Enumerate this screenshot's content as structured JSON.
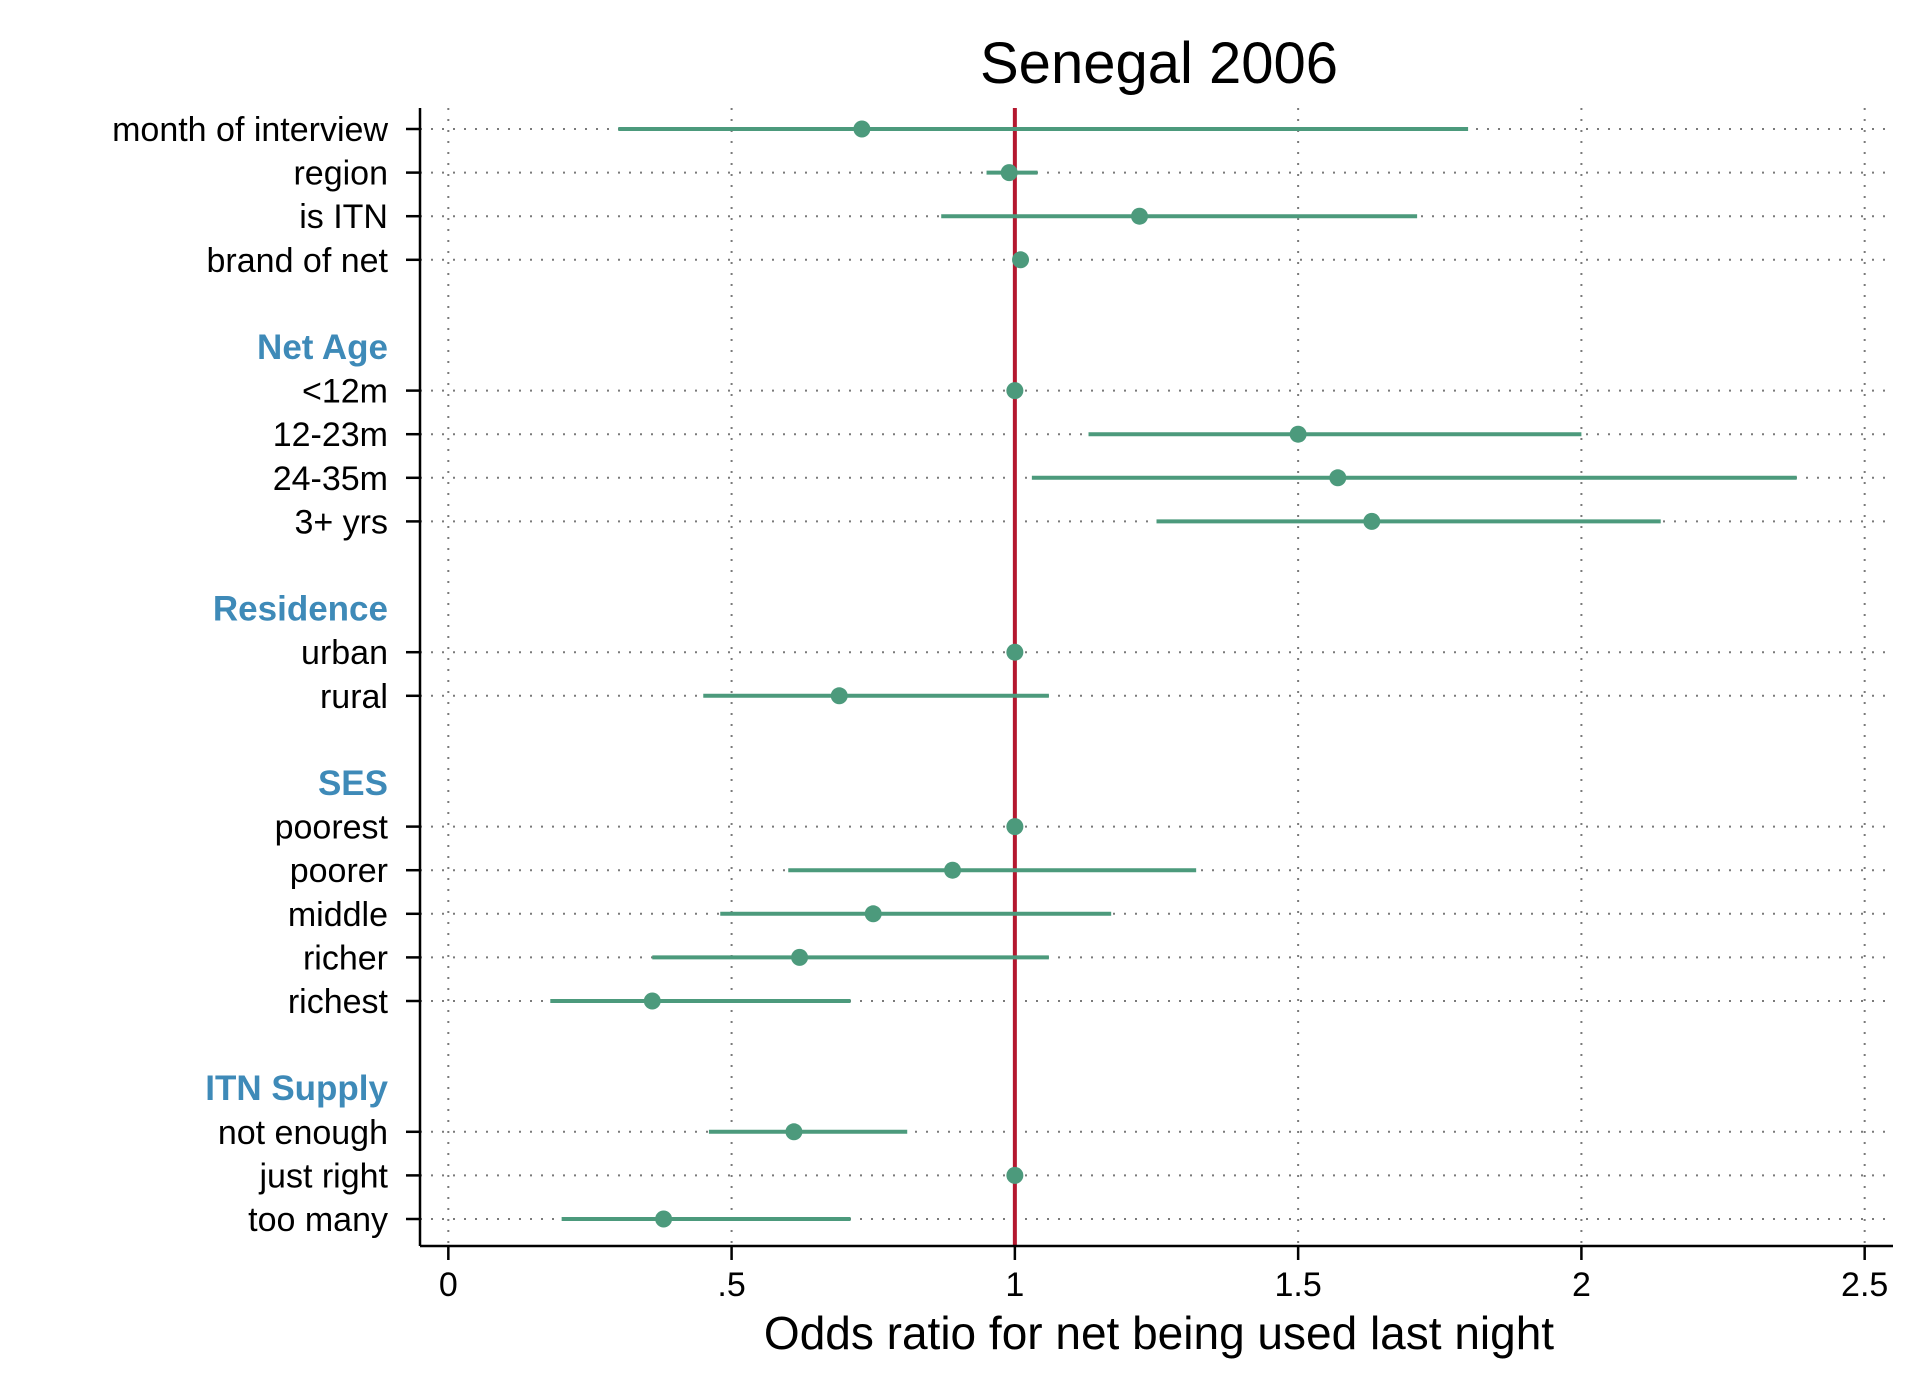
{
  "chart_data": {
    "type": "scatter",
    "title": "Senegal 2006",
    "xlabel": "Odds ratio for net being used last night",
    "ylabel": "",
    "xlim": [
      -0.05,
      2.55
    ],
    "xticks": [
      0,
      0.5,
      1,
      1.5,
      2,
      2.5
    ],
    "xtick_labels": [
      "0",
      ".5",
      "1",
      "1.5",
      "2",
      "2.5"
    ],
    "reference_line": 1,
    "grid": true,
    "rows": [
      {
        "kind": "row",
        "label": "month of interview",
        "estimate": 0.73,
        "ci": [
          0.3,
          1.8
        ]
      },
      {
        "kind": "row",
        "label": "region",
        "estimate": 0.99,
        "ci": [
          0.95,
          1.04
        ]
      },
      {
        "kind": "row",
        "label": "is ITN",
        "estimate": 1.22,
        "ci": [
          0.87,
          1.71
        ]
      },
      {
        "kind": "row",
        "label": "brand of net",
        "estimate": 1.01,
        "ci": [
          1.0,
          1.02
        ]
      },
      {
        "kind": "spacer"
      },
      {
        "kind": "group",
        "label": "Net Age"
      },
      {
        "kind": "row",
        "label": "<12m",
        "estimate": 1.0,
        "ci": [
          1.0,
          1.0
        ]
      },
      {
        "kind": "row",
        "label": "12-23m",
        "estimate": 1.5,
        "ci": [
          1.13,
          2.0
        ]
      },
      {
        "kind": "row",
        "label": "24-35m",
        "estimate": 1.57,
        "ci": [
          1.03,
          2.38
        ]
      },
      {
        "kind": "row",
        "label": "3+ yrs",
        "estimate": 1.63,
        "ci": [
          1.25,
          2.14
        ]
      },
      {
        "kind": "spacer"
      },
      {
        "kind": "group",
        "label": "Residence"
      },
      {
        "kind": "row",
        "label": "urban",
        "estimate": 1.0,
        "ci": [
          1.0,
          1.0
        ]
      },
      {
        "kind": "row",
        "label": "rural",
        "estimate": 0.69,
        "ci": [
          0.45,
          1.06
        ]
      },
      {
        "kind": "spacer"
      },
      {
        "kind": "group",
        "label": "SES"
      },
      {
        "kind": "row",
        "label": "poorest",
        "estimate": 1.0,
        "ci": [
          1.0,
          1.0
        ]
      },
      {
        "kind": "row",
        "label": "poorer",
        "estimate": 0.89,
        "ci": [
          0.6,
          1.32
        ]
      },
      {
        "kind": "row",
        "label": "middle",
        "estimate": 0.75,
        "ci": [
          0.48,
          1.17
        ]
      },
      {
        "kind": "row",
        "label": "richer",
        "estimate": 0.62,
        "ci": [
          0.36,
          1.06
        ]
      },
      {
        "kind": "row",
        "label": "richest",
        "estimate": 0.36,
        "ci": [
          0.18,
          0.71
        ]
      },
      {
        "kind": "spacer"
      },
      {
        "kind": "group",
        "label": "ITN Supply"
      },
      {
        "kind": "row",
        "label": "not enough",
        "estimate": 0.61,
        "ci": [
          0.46,
          0.81
        ]
      },
      {
        "kind": "row",
        "label": "just right",
        "estimate": 1.0,
        "ci": [
          1.0,
          1.0
        ]
      },
      {
        "kind": "row",
        "label": "too many",
        "estimate": 0.38,
        "ci": [
          0.2,
          0.71
        ]
      }
    ]
  },
  "colors": {
    "marker": "#4c9a7c",
    "reference_line": "#b4182f",
    "group_label": "#3e8ab8",
    "grid": "#7a7a7a",
    "axis": "#000000"
  }
}
